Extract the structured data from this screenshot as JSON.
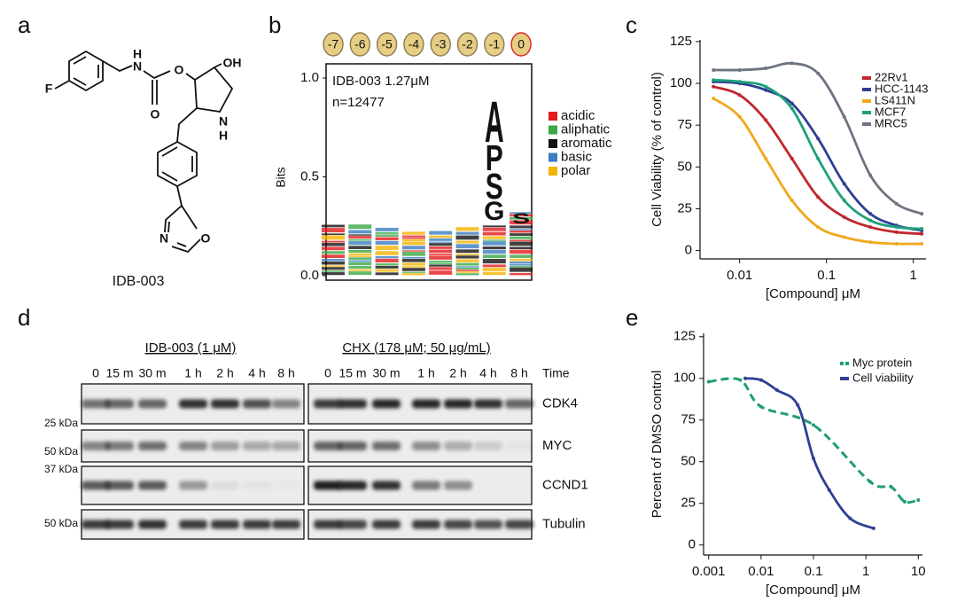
{
  "panel_labels": [
    "a",
    "b",
    "c",
    "d",
    "e"
  ],
  "compound": {
    "name": "IDB-003",
    "atoms": [
      "F",
      "N",
      "H",
      "O",
      "O",
      "OH",
      "N",
      "H",
      "N",
      "O"
    ]
  },
  "logo": {
    "positions": [
      "-7",
      "-6",
      "-5",
      "-4",
      "-3",
      "-2",
      "-1",
      "0"
    ],
    "title": "IDB-003 1.27μM",
    "n": "n=12477",
    "ylabel": "Bits",
    "ylim": [
      0,
      1
    ],
    "yticks": [
      {
        "value": 0,
        "label": "0.0"
      },
      {
        "value": 0.5,
        "label": "0.5"
      },
      {
        "value": 1,
        "label": "1.0"
      }
    ],
    "legend": [
      {
        "name": "acidic",
        "color": "#e41a1c"
      },
      {
        "name": "aliphatic",
        "color": "#3aa845"
      },
      {
        "name": "aromatic",
        "color": "#111111"
      },
      {
        "name": "basic",
        "color": "#3a7dc1"
      },
      {
        "name": "polar",
        "color": "#f5b400"
      }
    ],
    "letters": [
      {
        "letter": "A",
        "color": "#3aa845"
      },
      {
        "letter": "P",
        "color": "#3aa845"
      },
      {
        "letter": "S",
        "color": "#f5b400"
      },
      {
        "letter": "G",
        "color": "#3aa845"
      },
      {
        "letter": "S",
        "color": "#f5b400"
      }
    ]
  },
  "blot": {
    "groups": [
      "IDB-003 (1 μM)",
      "CHX (178 μM; 50 μg/mL)"
    ],
    "time_label": "Time",
    "times": [
      "0",
      "15 m",
      "30 m",
      "1 h",
      "2 h",
      "4 h",
      "8 h"
    ],
    "proteins": [
      "CDK4",
      "MYC",
      "CCND1",
      "Tubulin"
    ],
    "markers": [
      "25 kDa",
      "50 kDa",
      "37 kDa",
      "50 kDa"
    ]
  },
  "chart_data": [
    {
      "type": "line",
      "xlog": true,
      "xlabel": "[Compound] μM",
      "ylabel": "Cell Viability (% of control)",
      "x": [
        0.005,
        0.01,
        0.02,
        0.04,
        0.08,
        0.16,
        0.32,
        0.64,
        1.25
      ],
      "xlim": [
        0.0035,
        1.4
      ],
      "xticks": [
        0.01,
        0.1,
        1
      ],
      "ylim": [
        -5,
        126
      ],
      "yticks": [
        0,
        25,
        50,
        75,
        100,
        125
      ],
      "series": [
        {
          "name": "22Rv1",
          "color": "#c0272d",
          "values": [
            98,
            93,
            78,
            55,
            32,
            20,
            14,
            11,
            10
          ]
        },
        {
          "name": "HCC-1143",
          "color": "#2e3f94",
          "values": [
            101,
            100,
            96,
            88,
            67,
            40,
            22,
            15,
            12
          ]
        },
        {
          "name": "LS411N",
          "color": "#f0a81c",
          "values": [
            91,
            80,
            55,
            30,
            14,
            8,
            5,
            4,
            4
          ]
        },
        {
          "name": "MCF7",
          "color": "#1fa07a",
          "values": [
            102,
            101,
            98,
            85,
            55,
            30,
            18,
            14,
            13
          ]
        },
        {
          "name": "MRC5",
          "color": "#6d7480",
          "values": [
            108,
            108,
            109,
            112,
            106,
            80,
            45,
            28,
            22
          ]
        }
      ]
    },
    {
      "type": "line",
      "xlog": true,
      "xlabel": "[Compound] μM",
      "ylabel": "Percent of DMSO control",
      "xlim": [
        0.0008,
        12
      ],
      "xticks": [
        0.001,
        0.01,
        0.1,
        1,
        10
      ],
      "ylim": [
        -6,
        127
      ],
      "yticks": [
        0,
        25,
        50,
        75,
        100,
        125
      ],
      "series": [
        {
          "name": "Myc protein",
          "color": "#1e9e74",
          "dashed": true,
          "x": [
            0.001,
            0.004,
            0.01,
            0.1,
            1.2,
            3,
            5.5,
            10
          ],
          "values": [
            98,
            99,
            83,
            72,
            38,
            35,
            26,
            27
          ]
        },
        {
          "name": "Cell viability",
          "color": "#2e3f94",
          "dashed": false,
          "x": [
            0.005,
            0.01,
            0.02,
            0.05,
            0.1,
            0.2,
            0.5,
            1.4
          ],
          "values": [
            100,
            99,
            93,
            84,
            52,
            33,
            16,
            10
          ]
        }
      ]
    }
  ]
}
